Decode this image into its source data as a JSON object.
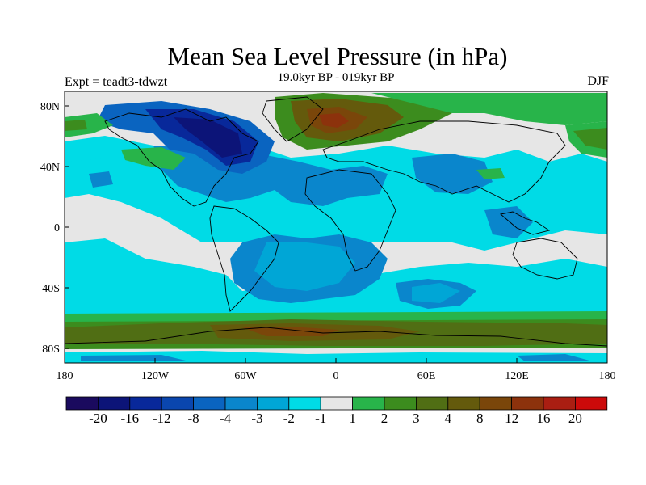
{
  "title": "Mean Sea Level Pressure (in hPa)",
  "subtitle": "19.0kyr BP - 019kyr BP",
  "experiment": "Expt = teadt3-tdwzt",
  "season": "DJF",
  "axes": {
    "lat_ticks": [
      "80N",
      "40N",
      "0",
      "40S",
      "80S"
    ],
    "lon_ticks": [
      "180",
      "120W",
      "60W",
      "0",
      "60E",
      "120E",
      "180"
    ]
  },
  "colorbar": {
    "colors": [
      "#1a0a5e",
      "#0c1478",
      "#08289a",
      "#0a46ae",
      "#0a64c0",
      "#0a86cc",
      "#00a6d6",
      "#00dbe6",
      "#e6e6e6",
      "#28b44a",
      "#3c8c1e",
      "#506e14",
      "#645a0c",
      "#7a460a",
      "#8c320c",
      "#aa1e12",
      "#cc0a0a"
    ],
    "labels": [
      "-20",
      "-16",
      "-12",
      "-8",
      "-4",
      "-3",
      "-2",
      "-1",
      "1",
      "2",
      "3",
      "4",
      "8",
      "12",
      "16",
      "20"
    ]
  },
  "legend_colors": {
    "neutral": "#e6e6e6",
    "light_negative": "#00dbe6",
    "mid_negative": "#0a86cc",
    "strong_negative": "#0a46ae",
    "light_positive": "#28b44a",
    "mid_positive": "#3c8c1e",
    "strong_positive": "#645a0c",
    "peak_positive": "#8c320c"
  }
}
